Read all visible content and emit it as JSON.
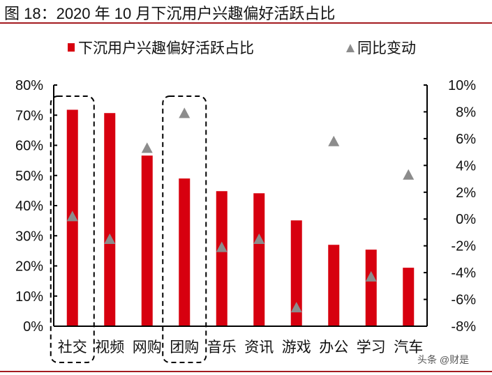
{
  "title": "图 18：2020 年 10 月下沉用户兴趣偏好活跃占比",
  "watermark": "头条 @财是",
  "chart_data": {
    "type": "bar",
    "title": "图 18：2020 年 10 月下沉用户兴趣偏好活跃占比",
    "categories": [
      "社交",
      "视频",
      "网购",
      "团购",
      "音乐",
      "资讯",
      "游戏",
      "办公",
      "学习",
      "汽车"
    ],
    "series": [
      {
        "name": "下沉用户兴趣偏好活跃占比",
        "type": "bar",
        "axis": "left",
        "color": "#d7000f",
        "values": [
          71.8,
          70.7,
          56.6,
          49.0,
          44.8,
          44.1,
          35.1,
          27.0,
          25.4,
          19.4
        ]
      },
      {
        "name": "同比变动",
        "type": "scatter",
        "marker": "triangle",
        "axis": "right",
        "color": "#8c8c8c",
        "values": [
          0.2,
          -1.5,
          5.3,
          7.9,
          -2.1,
          -1.5,
          -6.6,
          5.8,
          -4.3,
          3.3
        ]
      }
    ],
    "left_axis": {
      "ylim": [
        0,
        80
      ],
      "ticks": [
        "0%",
        "10%",
        "20%",
        "30%",
        "40%",
        "50%",
        "60%",
        "70%",
        "80%"
      ]
    },
    "right_axis": {
      "ylim": [
        -8,
        10
      ],
      "ticks": [
        "-8%",
        "-6%",
        "-4%",
        "-2%",
        "0%",
        "2%",
        "4%",
        "6%",
        "8%",
        "10%"
      ]
    },
    "legend": {
      "placement": "top",
      "items": [
        "下沉用户兴趣偏好活跃占比",
        "同比变动"
      ]
    },
    "highlighted_categories": [
      "社交",
      "团购"
    ],
    "grid": false
  }
}
